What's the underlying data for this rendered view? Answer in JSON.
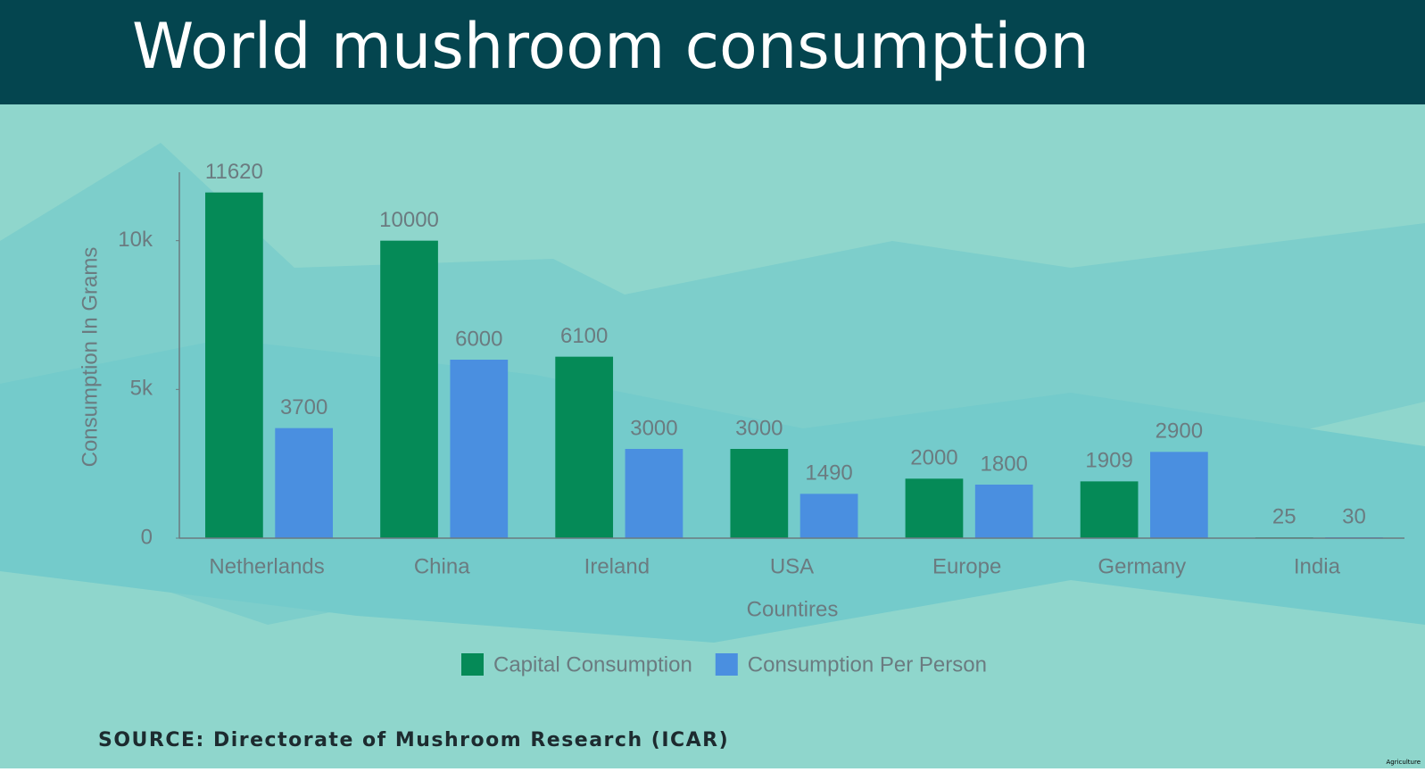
{
  "chart_data": {
    "type": "bar",
    "title": "World mushroom consumption",
    "x_label": "Countires",
    "y_label": "Consumption In Grams",
    "categories": [
      "Netherlands",
      "China",
      "Ireland",
      "USA",
      "Europe",
      "Germany",
      "India"
    ],
    "series": [
      {
        "name": "Capital Consumption",
        "color": "#058a57",
        "values": [
          11620,
          10000,
          6100,
          3000,
          2000,
          1909,
          25
        ]
      },
      {
        "name": "Consumption Per Person",
        "color": "#4a8fe0",
        "values": [
          3700,
          6000,
          3000,
          1490,
          1800,
          2900,
          30
        ]
      }
    ],
    "ylim": [
      0,
      12300
    ],
    "yticks": [
      0,
      {
        "value": 5000,
        "label": "5k"
      },
      {
        "value": 10000,
        "label": "10k"
      }
    ],
    "legend": "bottom",
    "source": "SOURCE: Directorate of Mushroom Research (ICAR)",
    "watermark": "Agriculture"
  }
}
